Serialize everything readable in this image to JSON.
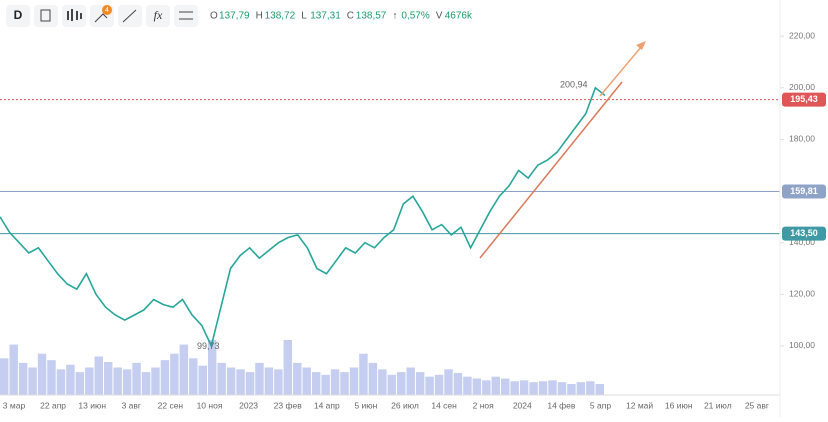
{
  "toolbar": {
    "interval": "D",
    "badge": "4"
  },
  "ohlc": [
    {
      "key": "O",
      "text": "137,79"
    },
    {
      "key": "H",
      "text": "138,72"
    },
    {
      "key": "L",
      "text": "137,31"
    },
    {
      "key": "C",
      "text": "138,57"
    },
    {
      "key": "↑",
      "text": "0,57%"
    },
    {
      "key": "V",
      "text": "4676k"
    }
  ],
  "chart_data": {
    "type": "line",
    "color": "#26a69a",
    "volume_color": "#c5cdf0",
    "values": [
      150,
      144,
      140,
      136,
      138,
      133,
      128,
      124,
      122,
      128,
      120,
      115,
      112,
      110,
      112,
      114,
      118,
      116,
      115,
      118,
      112,
      108,
      100,
      115,
      130,
      135,
      138,
      134,
      137,
      140,
      142,
      143,
      138,
      130,
      128,
      133,
      138,
      136,
      140,
      138,
      142,
      145,
      155,
      158,
      152,
      145,
      147,
      143,
      146,
      138,
      145,
      152,
      158,
      162,
      168,
      165,
      170,
      172,
      175,
      180,
      185,
      190,
      200,
      197
    ],
    "volumes": [
      40,
      55,
      35,
      30,
      45,
      38,
      28,
      33,
      25,
      30,
      42,
      36,
      30,
      28,
      35,
      25,
      30,
      38,
      45,
      55,
      40,
      32,
      60,
      35,
      30,
      28,
      25,
      35,
      30,
      28,
      60,
      35,
      30,
      25,
      22,
      28,
      25,
      30,
      45,
      35,
      28,
      22,
      25,
      30,
      25,
      20,
      22,
      28,
      24,
      20,
      18,
      16,
      20,
      18,
      15,
      16,
      14,
      15,
      16,
      14,
      12,
      14,
      15,
      12
    ],
    "ylim": [
      81,
      234
    ],
    "yticks": [
      {
        "value": 220,
        "label": "220,00"
      },
      {
        "value": 200,
        "label": "200,00"
      },
      {
        "value": 180,
        "label": "180,00"
      },
      {
        "value": 140,
        "label": "140,00"
      },
      {
        "value": 120,
        "label": "120,00"
      },
      {
        "value": 100,
        "label": "100,00"
      }
    ],
    "levels": [
      {
        "value": 195.43,
        "label": "195,43",
        "color": "#e05555"
      },
      {
        "value": 159.81,
        "label": "159,81",
        "color": "#8fa3c8"
      },
      {
        "value": 143.5,
        "label": "143,50",
        "color": "#3f9aa5"
      }
    ],
    "annotations": [
      {
        "value": 200.94,
        "label": "200,94"
      },
      {
        "value": 99.73,
        "label": "99,73"
      }
    ],
    "xlabels": [
      "3 мар",
      "22 апр",
      "13 июн",
      "3 авг",
      "22 сен",
      "10 ноя",
      "2023",
      "23 фев",
      "14 апр",
      "5 июн",
      "26 июл",
      "14 сен",
      "2 ноя",
      "2024",
      "14 фев",
      "5 апр",
      "12 май",
      "16 июн",
      "21 июл",
      "25 авг"
    ]
  }
}
